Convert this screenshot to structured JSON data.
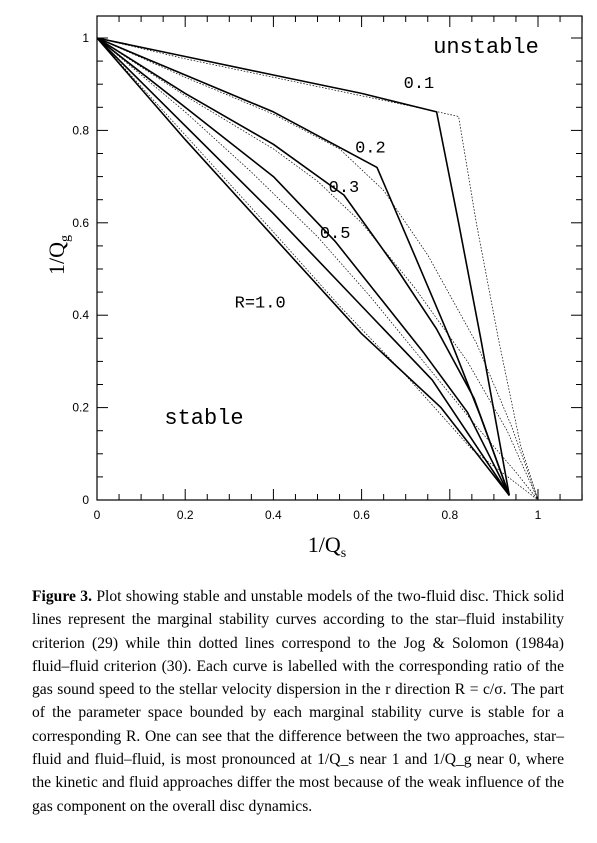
{
  "chart_data": {
    "type": "line",
    "xlabel": "1/Q_s",
    "ylabel": "1/Q_g",
    "xlim": [
      0,
      1
    ],
    "ylim": [
      0,
      1
    ],
    "x_ticks": [
      "0",
      "0.2",
      "0.4",
      "0.6",
      "0.8",
      "1"
    ],
    "y_ticks": [
      "0",
      "0.2",
      "0.4",
      "0.6",
      "0.8",
      "1"
    ],
    "region_labels": {
      "unstable": "unstable",
      "stable": "stable"
    },
    "series": [
      {
        "name": "0.1",
        "style": "solid",
        "points": [
          [
            0,
            1
          ],
          [
            0.2,
            0.96
          ],
          [
            0.4,
            0.92
          ],
          [
            0.6,
            0.88
          ],
          [
            0.77,
            0.84
          ],
          [
            0.82,
            0.6
          ],
          [
            0.87,
            0.35
          ],
          [
            0.935,
            0.01
          ]
        ]
      },
      {
        "name": "0.2",
        "style": "solid",
        "points": [
          [
            0,
            1
          ],
          [
            0.2,
            0.92
          ],
          [
            0.4,
            0.84
          ],
          [
            0.635,
            0.72
          ],
          [
            0.72,
            0.53
          ],
          [
            0.8,
            0.35
          ],
          [
            0.87,
            0.18
          ],
          [
            0.935,
            0.01
          ]
        ]
      },
      {
        "name": "0.3",
        "style": "solid",
        "points": [
          [
            0,
            1
          ],
          [
            0.2,
            0.88
          ],
          [
            0.4,
            0.77
          ],
          [
            0.56,
            0.66
          ],
          [
            0.68,
            0.5
          ],
          [
            0.77,
            0.37
          ],
          [
            0.855,
            0.22
          ],
          [
            0.935,
            0.01
          ]
        ]
      },
      {
        "name": "0.5",
        "style": "solid",
        "points": [
          [
            0,
            1
          ],
          [
            0.2,
            0.85
          ],
          [
            0.4,
            0.7
          ],
          [
            0.54,
            0.56
          ],
          [
            0.64,
            0.44
          ],
          [
            0.74,
            0.32
          ],
          [
            0.84,
            0.19
          ],
          [
            0.935,
            0.01
          ]
        ]
      },
      {
        "name": "",
        "style": "solid",
        "points": [
          [
            0,
            1
          ],
          [
            0.2,
            0.81
          ],
          [
            0.4,
            0.62
          ],
          [
            0.6,
            0.42
          ],
          [
            0.76,
            0.26
          ],
          [
            0.935,
            0.01
          ]
        ]
      },
      {
        "name": "R=1.0",
        "style": "solid",
        "points": [
          [
            0,
            1
          ],
          [
            0.2,
            0.78
          ],
          [
            0.4,
            0.57
          ],
          [
            0.6,
            0.36
          ],
          [
            0.78,
            0.2
          ],
          [
            0.935,
            0.01
          ]
        ]
      },
      {
        "name": "",
        "style": "dotted",
        "points": [
          [
            0,
            1
          ],
          [
            0.2,
            0.955
          ],
          [
            0.4,
            0.915
          ],
          [
            0.6,
            0.875
          ],
          [
            0.75,
            0.845
          ],
          [
            0.82,
            0.83
          ],
          [
            0.86,
            0.6
          ],
          [
            0.91,
            0.35
          ],
          [
            0.96,
            0.12
          ],
          [
            1.0,
            0.0
          ]
        ]
      },
      {
        "name": "",
        "style": "dotted",
        "points": [
          [
            0,
            1
          ],
          [
            0.2,
            0.915
          ],
          [
            0.4,
            0.835
          ],
          [
            0.55,
            0.76
          ],
          [
            0.65,
            0.67
          ],
          [
            0.75,
            0.53
          ],
          [
            0.86,
            0.34
          ],
          [
            0.94,
            0.16
          ],
          [
            1.0,
            0.0
          ]
        ]
      },
      {
        "name": "",
        "style": "dotted",
        "points": [
          [
            0,
            1
          ],
          [
            0.2,
            0.875
          ],
          [
            0.4,
            0.76
          ],
          [
            0.5,
            0.69
          ],
          [
            0.6,
            0.6
          ],
          [
            0.72,
            0.46
          ],
          [
            0.84,
            0.3
          ],
          [
            0.93,
            0.15
          ],
          [
            1.0,
            0.0
          ]
        ]
      },
      {
        "name": "",
        "style": "dotted",
        "points": [
          [
            0,
            1
          ],
          [
            0.2,
            0.84
          ],
          [
            0.35,
            0.71
          ],
          [
            0.5,
            0.57
          ],
          [
            0.62,
            0.44
          ],
          [
            0.74,
            0.3
          ],
          [
            0.86,
            0.16
          ],
          [
            0.95,
            0.06
          ],
          [
            1.0,
            0.0
          ]
        ]
      },
      {
        "name": "",
        "style": "dotted",
        "points": [
          [
            0,
            1
          ],
          [
            0.2,
            0.79
          ],
          [
            0.4,
            0.58
          ],
          [
            0.55,
            0.42
          ],
          [
            0.7,
            0.27
          ],
          [
            0.85,
            0.11
          ],
          [
            1.0,
            0.0
          ]
        ]
      }
    ]
  },
  "caption": {
    "label": "Figure 3.",
    "text": "Plot showing stable and unstable models of the two-fluid disc. Thick solid lines represent the marginal stability curves according to the star–fluid instability criterion (29) while thin dotted lines correspond to the Jog & Solomon (1984a) fluid–fluid criterion (30). Each curve is labelled with the corresponding ratio of the gas sound speed to the stellar velocity dispersion in the r direction R = c/σ. The part of the parameter space bounded by each marginal stability curve is stable for a corresponding R. One can see that the difference between the two approaches, star–fluid and fluid–fluid, is most pronounced at 1/Q_s near 1 and 1/Q_g near 0, where the kinetic and fluid approaches differ the most because of the weak influence of the gas component on the overall disc dynamics."
  }
}
